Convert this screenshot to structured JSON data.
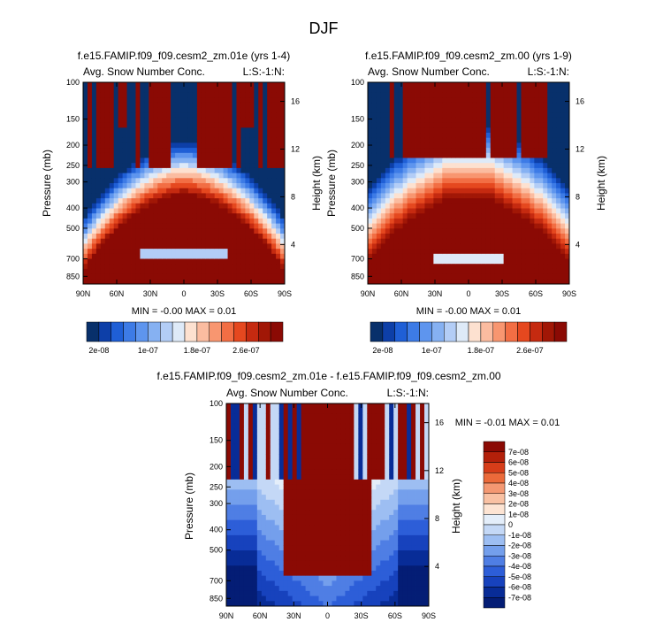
{
  "page_title": "DJF",
  "chart_data": [
    {
      "type": "heatmap",
      "title": "f.e15.FAMIP.f09_f09.cesm2_zm.01e (yrs 1-4)",
      "left_label": "Avg. Snow Number Conc.",
      "right_label": "L:S:-1:N:",
      "xlabel": "",
      "ylabel": "Pressure (mb)",
      "y2label": "Height (km)",
      "x_ticks": [
        "90N",
        "60N",
        "30N",
        "0",
        "30S",
        "60S",
        "90S"
      ],
      "x_values": [
        -90,
        -60,
        -30,
        0,
        30,
        60,
        90
      ],
      "y_ticks": [
        "100",
        "150",
        "200",
        "250",
        "300",
        "400",
        "500",
        "700",
        "850"
      ],
      "y_values": [
        100,
        150,
        200,
        250,
        300,
        400,
        500,
        700,
        850
      ],
      "y2_ticks": [
        "16",
        "12",
        "8",
        "4"
      ],
      "y2_values": [
        16,
        12,
        8,
        4
      ],
      "stats": "MIN =  -0.00   MAX =  0.01",
      "colorbar_labels": [
        "2e-08",
        "1e-07",
        "1.8e-07",
        "2.6e-07"
      ],
      "colorbar_label_index": [
        1,
        5,
        9,
        13
      ]
    },
    {
      "type": "heatmap",
      "title": "f.e15.FAMIP.f09_f09.cesm2_zm.00 (yrs 1-9)",
      "left_label": "Avg. Snow Number Conc.",
      "right_label": "L:S:-1:N:",
      "xlabel": "",
      "ylabel": "Pressure (mb)",
      "y2label": "Height (km)",
      "x_ticks": [
        "90N",
        "60N",
        "30N",
        "0",
        "30S",
        "60S",
        "90S"
      ],
      "x_values": [
        -90,
        -60,
        -30,
        0,
        30,
        60,
        90
      ],
      "y_ticks": [
        "100",
        "150",
        "200",
        "250",
        "300",
        "400",
        "500",
        "700",
        "850"
      ],
      "y_values": [
        100,
        150,
        200,
        250,
        300,
        400,
        500,
        700,
        850
      ],
      "y2_ticks": [
        "16",
        "12",
        "8",
        "4"
      ],
      "y2_values": [
        16,
        12,
        8,
        4
      ],
      "stats": "MIN =  -0.00   MAX =  0.01",
      "colorbar_labels": [
        "2e-08",
        "1e-07",
        "1.8e-07",
        "2.6e-07"
      ],
      "colorbar_label_index": [
        1,
        5,
        9,
        13
      ]
    },
    {
      "type": "heatmap",
      "title": "f.e15.FAMIP.f09_f09.cesm2_zm.01e - f.e15.FAMIP.f09_f09.cesm2_zm.00",
      "left_label": "Avg. Snow Number Conc.",
      "right_label": "L:S:-1:N:",
      "xlabel": "",
      "ylabel": "Pressure (mb)",
      "y2label": "Height (km)",
      "x_ticks": [
        "90N",
        "60N",
        "30N",
        "0",
        "30S",
        "60S",
        "90S"
      ],
      "x_values": [
        -90,
        -60,
        -30,
        0,
        30,
        60,
        90
      ],
      "y_ticks": [
        "100",
        "150",
        "200",
        "250",
        "300",
        "400",
        "500",
        "700",
        "850"
      ],
      "y_values": [
        100,
        150,
        200,
        250,
        300,
        400,
        500,
        700,
        850
      ],
      "y2_ticks": [
        "16",
        "12",
        "8",
        "4"
      ],
      "y2_values": [
        16,
        12,
        8,
        4
      ],
      "stats": "MIN =  -0.01   MAX =  0.01",
      "colorbar_labels": [
        "7e-08",
        "6e-08",
        "5e-08",
        "4e-08",
        "3e-08",
        "2e-08",
        "1e-08",
        "0",
        "-1e-08",
        "-2e-08",
        "-3e-08",
        "-4e-08",
        "-5e-08",
        "-6e-08",
        "-7e-08"
      ]
    }
  ],
  "seq_colors": [
    "#08306b",
    "#0d3fa8",
    "#1f5fd6",
    "#3d7be6",
    "#5e95ee",
    "#86b1f2",
    "#b3cdf6",
    "#deeaf8",
    "#fde1d0",
    "#fbbca0",
    "#f89670",
    "#f26e44",
    "#e5481f",
    "#c52a10",
    "#a11706",
    "#8b0a04"
  ],
  "div_colors": [
    "#8b0a04",
    "#b3200a",
    "#d63d19",
    "#eb6a3a",
    "#f49872",
    "#f9c1a3",
    "#fde4d3",
    "#e4eefa",
    "#c4d8f6",
    "#9dbef2",
    "#749fec",
    "#4f7ee4",
    "#2d5ed8",
    "#1742bd",
    "#082c97",
    "#041d75"
  ]
}
